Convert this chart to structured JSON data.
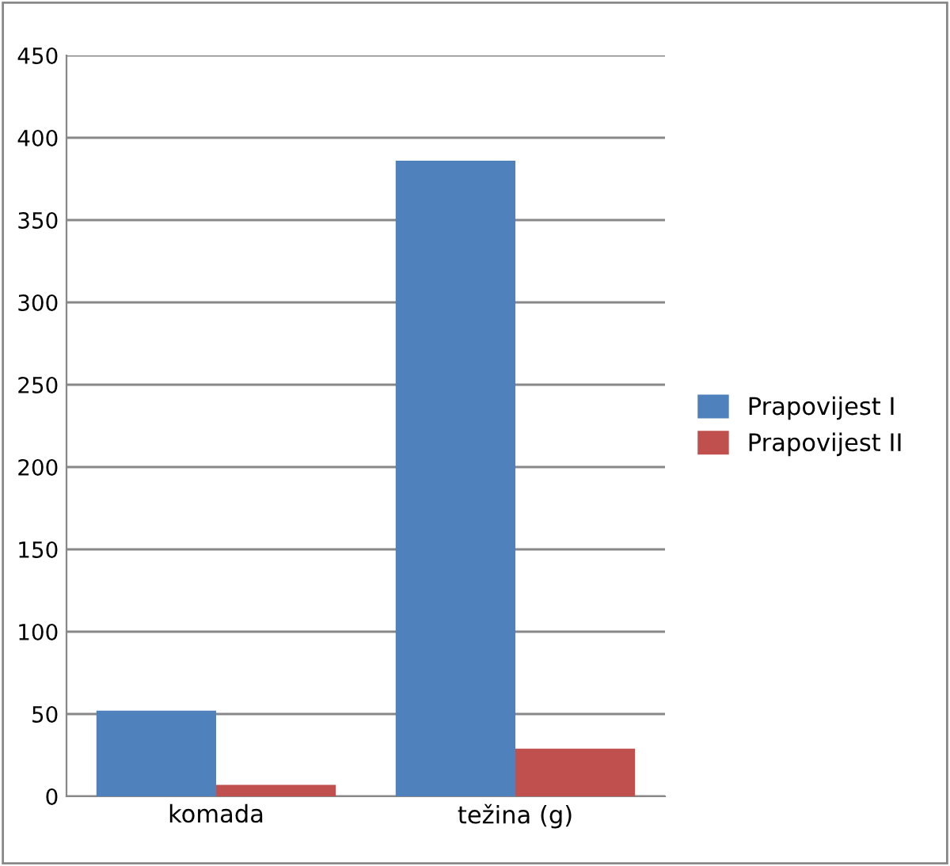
{
  "chart_data": {
    "type": "bar",
    "categories": [
      "komada",
      "težina (g)"
    ],
    "series": [
      {
        "name": "Prapovijest I",
        "color": "#4f81bd",
        "values": [
          52,
          386
        ]
      },
      {
        "name": "Prapovijest II",
        "color": "#c0504d",
        "values": [
          7,
          29
        ]
      }
    ],
    "ylim": [
      0,
      450
    ],
    "yticks": [
      0,
      50,
      100,
      150,
      200,
      250,
      300,
      350,
      400,
      450
    ],
    "grid": "y",
    "legend": "right"
  }
}
